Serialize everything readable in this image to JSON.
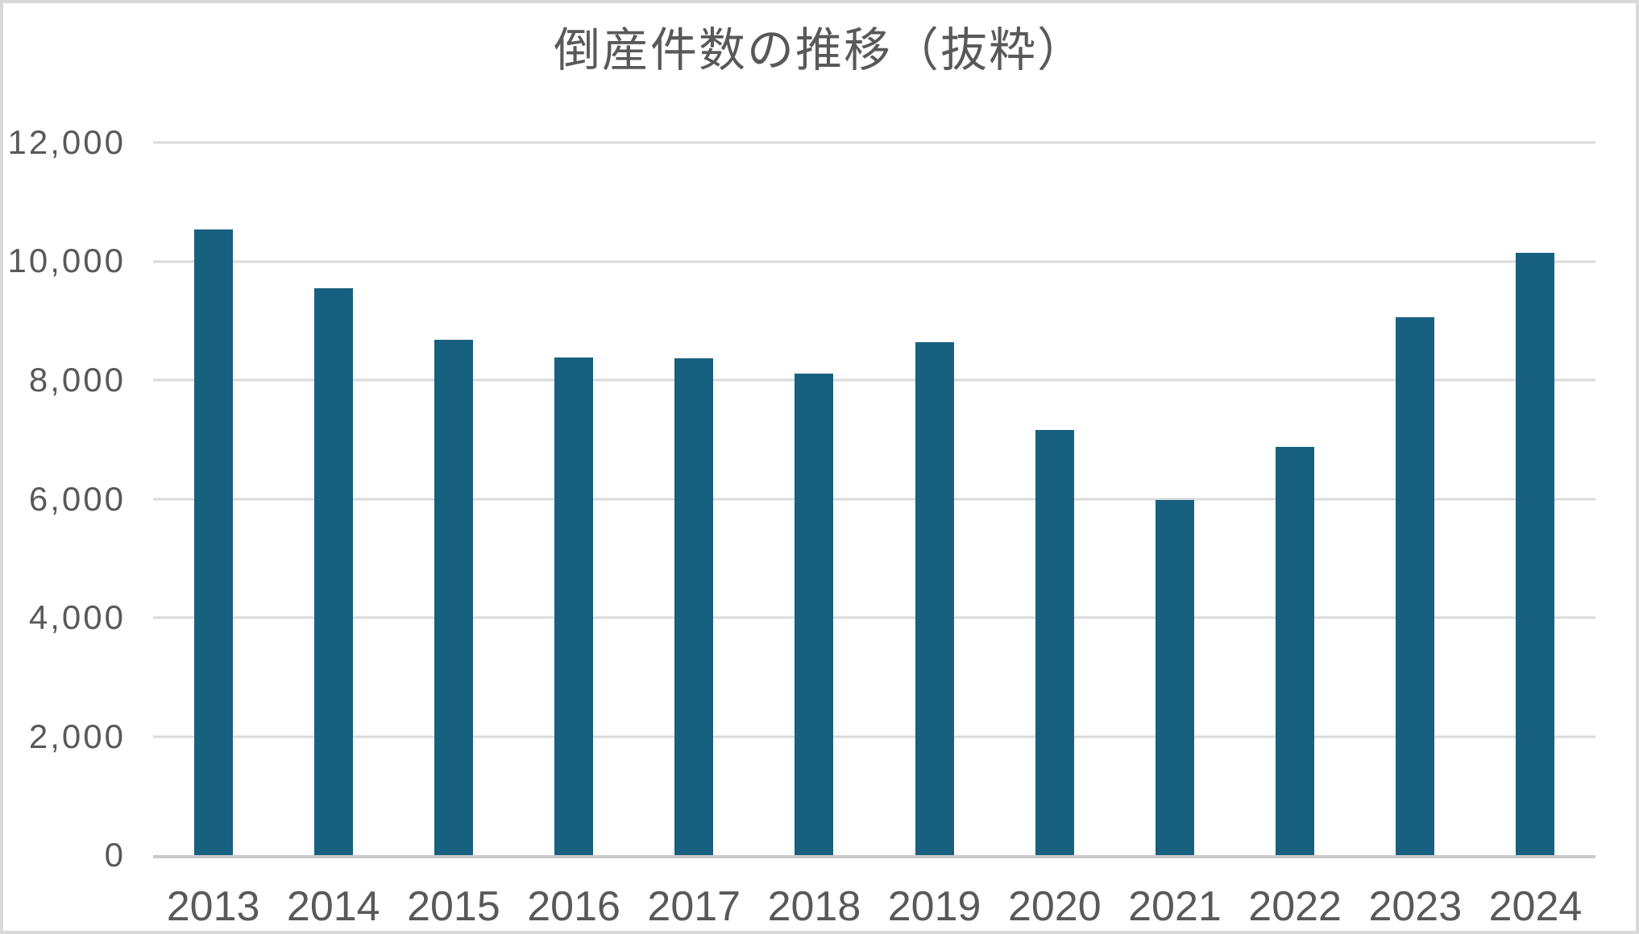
{
  "chart_data": {
    "type": "bar",
    "title": "倒産件数の推移（抜粋）",
    "categories": [
      "2013",
      "2014",
      "2015",
      "2016",
      "2017",
      "2018",
      "2019",
      "2020",
      "2021",
      "2022",
      "2023",
      "2024"
    ],
    "values": [
      10536,
      9543,
      8684,
      8381,
      8367,
      8110,
      8631,
      7163,
      5980,
      6880,
      9053,
      10144
    ],
    "xlabel": "",
    "ylabel": "",
    "ylim": [
      0,
      12000
    ],
    "y_tick_step": 2000,
    "y_ticks": [
      {
        "value": 0,
        "label": "0"
      },
      {
        "value": 2000,
        "label": "2,000"
      },
      {
        "value": 4000,
        "label": "4,000"
      },
      {
        "value": 6000,
        "label": "6,000"
      },
      {
        "value": 8000,
        "label": "8,000"
      },
      {
        "value": 10000,
        "label": "10,000"
      },
      {
        "value": 12000,
        "label": "12,000"
      }
    ],
    "grid": "horizontal",
    "legend": "none",
    "colors": {
      "bar": "#186080",
      "text": "#595959",
      "gridline": "#dadada",
      "axis_line": "#c9c9c9",
      "background": "#ffffff",
      "card_border": "#d9d9d9"
    }
  }
}
